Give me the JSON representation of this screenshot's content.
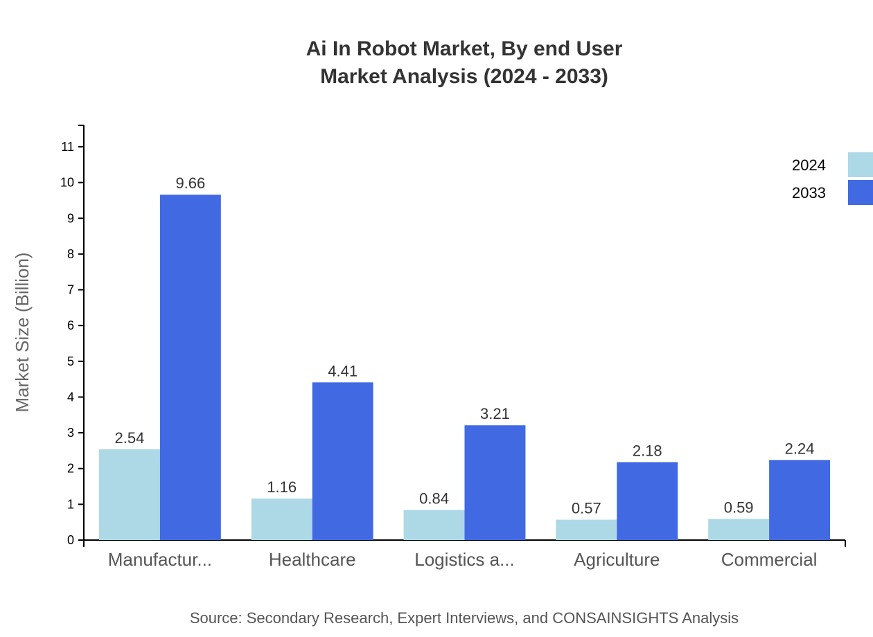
{
  "chart_data": {
    "type": "bar",
    "title": [
      "Ai In Robot Market, By end User",
      "Market Analysis (2024 - 2033)"
    ],
    "ylabel": "Market Size (Billion)",
    "xlabel": "",
    "categories": [
      "Manufactur...",
      "Healthcare",
      "Logistics a...",
      "Agriculture",
      "Commercial"
    ],
    "series": [
      {
        "name": "2024",
        "color": "#ADD8E6",
        "values": [
          2.54,
          1.16,
          0.84,
          0.57,
          0.59
        ]
      },
      {
        "name": "2033",
        "color": "#4169E1",
        "values": [
          9.66,
          4.41,
          3.21,
          2.18,
          2.24
        ]
      }
    ],
    "ylim": [
      0,
      11.6
    ],
    "yticks": [
      0,
      1,
      2,
      3,
      4,
      5,
      6,
      7,
      8,
      9,
      10,
      11
    ],
    "grid": false,
    "legend_position": "top-right",
    "source": "Source: Secondary Research, Expert Interviews, and CONSAINSIGHTS Analysis"
  }
}
